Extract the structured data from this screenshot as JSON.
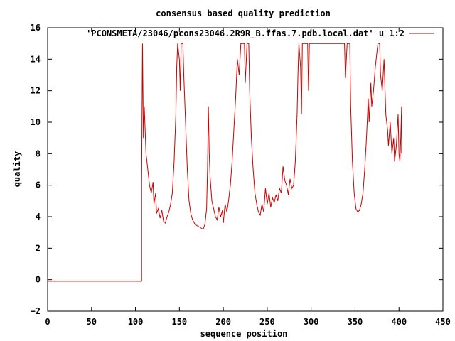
{
  "chart_data": {
    "type": "line",
    "title": "consensus based quality prediction",
    "xlabel": "sequence position",
    "ylabel": "quality",
    "xlim": [
      0,
      450
    ],
    "ylim": [
      -2,
      16
    ],
    "xticks": [
      0,
      50,
      100,
      150,
      200,
      250,
      300,
      350,
      400,
      450
    ],
    "yticks": [
      -2,
      0,
      2,
      4,
      6,
      8,
      10,
      12,
      14,
      16
    ],
    "xtick_labels": [
      "0",
      "50",
      "100",
      "150",
      "200",
      "250",
      "300",
      "350",
      "400",
      "450"
    ],
    "ytick_labels": [
      "−2",
      "0",
      "2",
      "4",
      "6",
      "8",
      "10",
      "12",
      "14",
      "16"
    ],
    "grid": false,
    "legend_position": "top-right",
    "series": [
      {
        "name": "'PCONSMETA/23046/pcons23046.2R9R_B.ffas.7.pdb.local.dat' u 1:2",
        "color": "#cc0000",
        "points": [
          [
            0,
            -0.1
          ],
          [
            107,
            -0.1
          ],
          [
            107,
            6.0
          ],
          [
            108,
            15.0
          ],
          [
            109,
            9.0
          ],
          [
            110,
            11.0
          ],
          [
            112,
            8.0
          ],
          [
            114,
            7.0
          ],
          [
            116,
            6.0
          ],
          [
            118,
            5.5
          ],
          [
            120,
            6.2
          ],
          [
            121,
            4.8
          ],
          [
            123,
            5.5
          ],
          [
            124,
            4.2
          ],
          [
            126,
            4.5
          ],
          [
            128,
            3.9
          ],
          [
            130,
            4.4
          ],
          [
            132,
            3.7
          ],
          [
            134,
            3.6
          ],
          [
            136,
            4.0
          ],
          [
            138,
            4.3
          ],
          [
            140,
            4.8
          ],
          [
            142,
            5.5
          ],
          [
            144,
            7.5
          ],
          [
            146,
            10.5
          ],
          [
            147,
            13.5
          ],
          [
            148,
            15.0
          ],
          [
            150,
            14.0
          ],
          [
            151,
            12.0
          ],
          [
            152,
            15.0
          ],
          [
            154,
            15.0
          ],
          [
            155,
            13.0
          ],
          [
            157,
            10.0
          ],
          [
            159,
            7.0
          ],
          [
            161,
            5.0
          ],
          [
            163,
            4.2
          ],
          [
            165,
            3.8
          ],
          [
            168,
            3.5
          ],
          [
            171,
            3.4
          ],
          [
            174,
            3.3
          ],
          [
            177,
            3.2
          ],
          [
            179,
            3.5
          ],
          [
            181,
            4.5
          ],
          [
            182,
            7.0
          ],
          [
            183,
            11.0
          ],
          [
            184,
            8.0
          ],
          [
            185,
            6.5
          ],
          [
            187,
            5.0
          ],
          [
            189,
            4.5
          ],
          [
            191,
            4.0
          ],
          [
            193,
            3.8
          ],
          [
            195,
            4.6
          ],
          [
            197,
            4.0
          ],
          [
            199,
            4.4
          ],
          [
            200,
            3.6
          ],
          [
            202,
            4.8
          ],
          [
            204,
            4.3
          ],
          [
            206,
            5.0
          ],
          [
            208,
            6.0
          ],
          [
            210,
            7.5
          ],
          [
            212,
            9.5
          ],
          [
            214,
            11.5
          ],
          [
            216,
            14.0
          ],
          [
            218,
            13.0
          ],
          [
            220,
            15.0
          ],
          [
            224,
            15.0
          ],
          [
            225,
            12.5
          ],
          [
            227,
            15.0
          ],
          [
            229,
            15.0
          ],
          [
            230,
            12.0
          ],
          [
            232,
            9.0
          ],
          [
            234,
            7.0
          ],
          [
            236,
            5.5
          ],
          [
            238,
            4.8
          ],
          [
            240,
            4.3
          ],
          [
            242,
            4.1
          ],
          [
            244,
            4.8
          ],
          [
            246,
            4.3
          ],
          [
            248,
            5.8
          ],
          [
            250,
            4.8
          ],
          [
            252,
            5.5
          ],
          [
            254,
            4.6
          ],
          [
            256,
            5.2
          ],
          [
            258,
            4.9
          ],
          [
            260,
            5.4
          ],
          [
            262,
            5.0
          ],
          [
            264,
            5.8
          ],
          [
            266,
            5.5
          ],
          [
            268,
            7.2
          ],
          [
            270,
            6.3
          ],
          [
            272,
            6.0
          ],
          [
            274,
            5.4
          ],
          [
            276,
            6.4
          ],
          [
            278,
            5.8
          ],
          [
            280,
            6.0
          ],
          [
            282,
            7.5
          ],
          [
            284,
            10.5
          ],
          [
            285,
            13.0
          ],
          [
            286,
            15.0
          ],
          [
            288,
            13.5
          ],
          [
            289,
            10.5
          ],
          [
            290,
            15.0
          ],
          [
            296,
            15.0
          ],
          [
            297,
            12.0
          ],
          [
            298,
            15.0
          ],
          [
            338,
            15.0
          ],
          [
            339,
            12.8
          ],
          [
            341,
            15.0
          ],
          [
            344,
            15.0
          ],
          [
            345,
            11.0
          ],
          [
            347,
            7.5
          ],
          [
            349,
            5.5
          ],
          [
            351,
            4.5
          ],
          [
            353,
            4.3
          ],
          [
            355,
            4.4
          ],
          [
            357,
            4.8
          ],
          [
            359,
            5.5
          ],
          [
            361,
            7.0
          ],
          [
            363,
            9.0
          ],
          [
            365,
            11.5
          ],
          [
            366,
            10.0
          ],
          [
            368,
            12.5
          ],
          [
            369,
            11.0
          ],
          [
            371,
            12.0
          ],
          [
            373,
            13.5
          ],
          [
            375,
            14.5
          ],
          [
            376,
            15.0
          ],
          [
            378,
            15.0
          ],
          [
            379,
            13.0
          ],
          [
            381,
            12.0
          ],
          [
            383,
            14.0
          ],
          [
            385,
            10.5
          ],
          [
            387,
            9.5
          ],
          [
            388,
            8.5
          ],
          [
            390,
            10.0
          ],
          [
            392,
            8.0
          ],
          [
            394,
            9.0
          ],
          [
            395,
            7.5
          ],
          [
            397,
            8.5
          ],
          [
            399,
            10.5
          ],
          [
            400,
            8.0
          ],
          [
            401,
            7.5
          ],
          [
            402,
            9.0
          ],
          [
            403,
            11.0
          ],
          [
            403,
            8.0
          ]
        ]
      }
    ]
  }
}
